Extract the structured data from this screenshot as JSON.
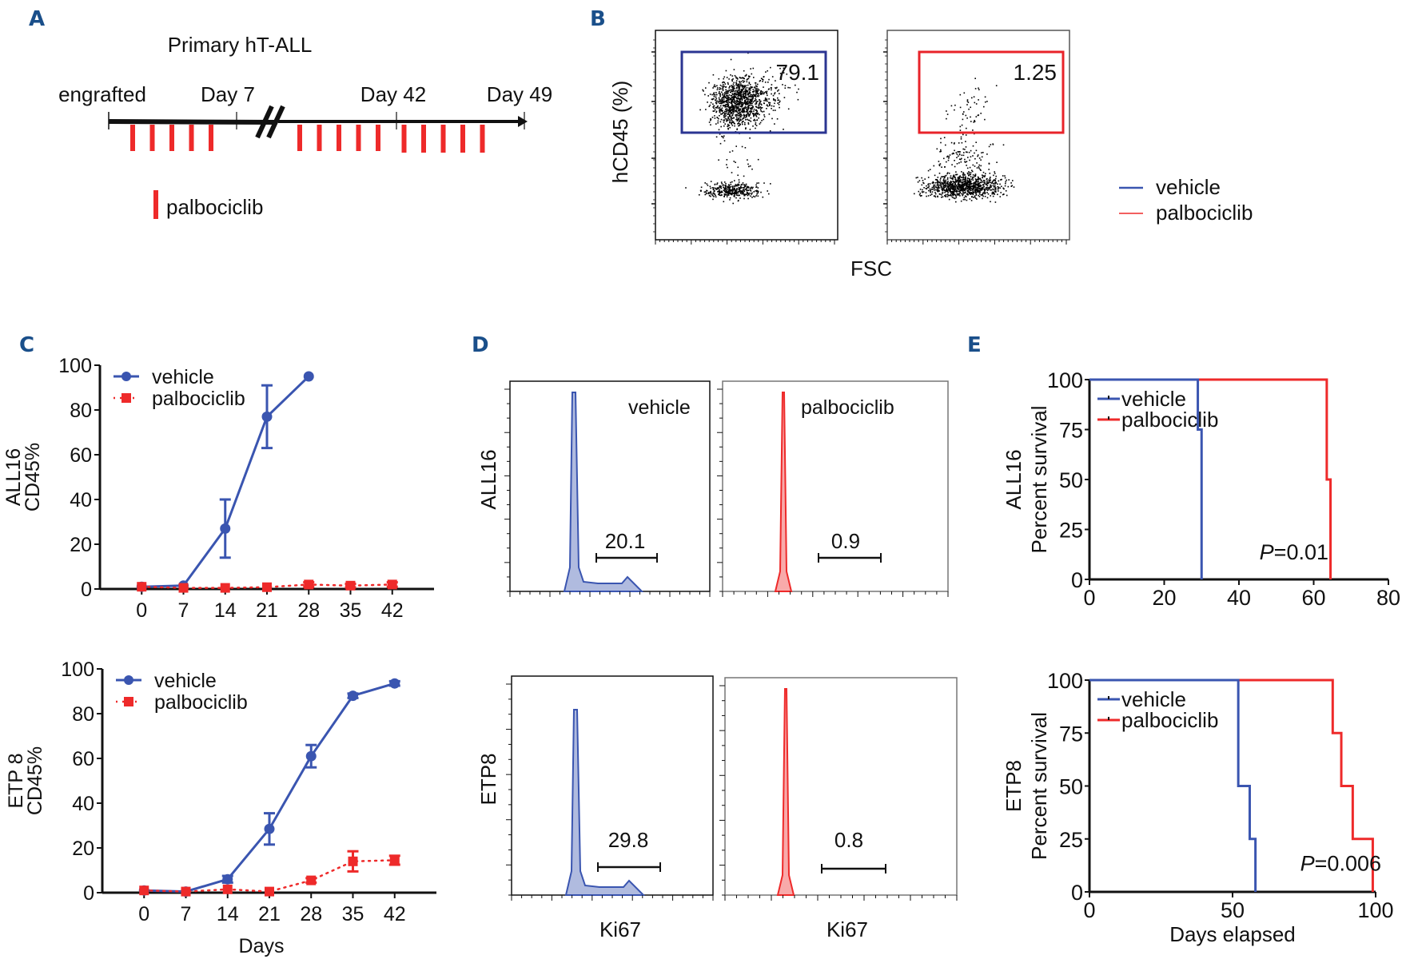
{
  "colors": {
    "vehicle": "#3a55b0",
    "palbociclib": "#ee2a2a",
    "panel_letter": "#1a4f8a",
    "gate_vehicle": "#2b3592",
    "gate_palbo": "#e8232a"
  },
  "panels": {
    "A": {
      "letter": "A",
      "title": "Primary hT-ALL",
      "timeline_labels": [
        "engrafted",
        "Day 7",
        "Day 42",
        "Day 49"
      ],
      "doses_before_break": 5,
      "doses_after_break": 10,
      "legend_label": "palbociclib"
    },
    "B": {
      "letter": "B",
      "ylabel": "hCD45 (%)",
      "xlabel": "FSC",
      "gate_values": [
        "79.1",
        "1.25"
      ],
      "legend": [
        "vehicle",
        "palbociclib"
      ]
    },
    "C": {
      "letter": "C"
    },
    "D": {
      "letter": "D",
      "row_labels": [
        "ALL16",
        "ETP8"
      ],
      "xlabel": "Ki67",
      "condition_labels": [
        "vehicle",
        "palbociclib"
      ],
      "gate_values": [
        [
          "20.1",
          "0.9"
        ],
        [
          "29.8",
          "0.8"
        ]
      ]
    },
    "E": {
      "letter": "E"
    }
  },
  "chart_data": [
    {
      "id": "C-top",
      "type": "line",
      "title": "",
      "xlabel": "",
      "ylabel": [
        "ALL16",
        "CD45%"
      ],
      "x": [
        0,
        7,
        14,
        21,
        28,
        35,
        42
      ],
      "xticks": [
        "0",
        "7",
        "14",
        "21",
        "28",
        "35",
        "42"
      ],
      "yticks": [
        "0",
        "20",
        "40",
        "60",
        "80",
        "100"
      ],
      "ylim": [
        0,
        100
      ],
      "legend": "top-left",
      "series": [
        {
          "name": "vehicle",
          "x": [
            0,
            7,
            14,
            21,
            28
          ],
          "values": [
            1,
            1.5,
            27,
            77,
            95
          ],
          "err": [
            0.5,
            0.5,
            13,
            14,
            0
          ]
        },
        {
          "name": "palbociclib",
          "x": [
            0,
            7,
            14,
            21,
            28,
            35,
            42
          ],
          "values": [
            1,
            0.5,
            0.5,
            0.8,
            2,
            1.5,
            2
          ],
          "err": [
            0.5,
            0.3,
            0.3,
            0.5,
            1,
            0.8,
            1
          ]
        }
      ]
    },
    {
      "id": "C-bottom",
      "type": "line",
      "title": "",
      "xlabel": "Days",
      "ylabel": [
        "ETP 8",
        "CD45%"
      ],
      "x": [
        0,
        7,
        14,
        21,
        28,
        35,
        42
      ],
      "xticks": [
        "0",
        "7",
        "14",
        "21",
        "28",
        "35",
        "42"
      ],
      "yticks": [
        "0",
        "20",
        "40",
        "60",
        "80",
        "100"
      ],
      "ylim": [
        0,
        100
      ],
      "legend": "top-left",
      "series": [
        {
          "name": "vehicle",
          "x": [
            0,
            7,
            14,
            21,
            28,
            35,
            42
          ],
          "values": [
            1,
            0.5,
            6,
            28.5,
            61,
            88,
            93.5
          ],
          "err": [
            0.5,
            0.3,
            1.5,
            7,
            5,
            1,
            1
          ]
        },
        {
          "name": "palbociclib",
          "x": [
            0,
            7,
            14,
            21,
            28,
            35,
            42
          ],
          "values": [
            1,
            0.5,
            1.5,
            0.5,
            5.5,
            14,
            14.5
          ],
          "err": [
            0.5,
            0.3,
            0.5,
            0.3,
            1,
            4.5,
            2
          ]
        }
      ]
    },
    {
      "id": "E-top",
      "type": "line",
      "subtype": "kaplan-meier",
      "xlabel": "",
      "ylabel": [
        "ALL16",
        "Percent survival"
      ],
      "xticks": [
        "0",
        "20",
        "40",
        "60",
        "80"
      ],
      "yticks": [
        "0",
        "25",
        "50",
        "75",
        "100"
      ],
      "xlim": [
        0,
        80
      ],
      "ylim": [
        0,
        100
      ],
      "legend": "top-left",
      "annotation": {
        "italic": "P",
        "text": "=0.01"
      },
      "series": [
        {
          "name": "vehicle",
          "steps": [
            [
              0,
              100
            ],
            [
              29,
              100
            ],
            [
              29,
              75
            ],
            [
              30,
              75
            ],
            [
              30,
              0
            ]
          ]
        },
        {
          "name": "palbociclib",
          "steps": [
            [
              0,
              100
            ],
            [
              63.5,
              100
            ],
            [
              63.5,
              50
            ],
            [
              64.5,
              50
            ],
            [
              64.5,
              0
            ]
          ]
        }
      ]
    },
    {
      "id": "E-bottom",
      "type": "line",
      "subtype": "kaplan-meier",
      "xlabel": "Days elapsed",
      "ylabel": [
        "ETP8",
        "Percent survival"
      ],
      "xticks": [
        "0",
        "50",
        "100"
      ],
      "yticks": [
        "0",
        "25",
        "50",
        "75",
        "100"
      ],
      "xlim": [
        0,
        100
      ],
      "ylim": [
        0,
        100
      ],
      "legend": "top-left",
      "annotation": {
        "italic": "P",
        "text": "=0.006"
      },
      "series": [
        {
          "name": "vehicle",
          "steps": [
            [
              0,
              100
            ],
            [
              52,
              100
            ],
            [
              52,
              50
            ],
            [
              56,
              50
            ],
            [
              56,
              25
            ],
            [
              58,
              25
            ],
            [
              58,
              0
            ]
          ]
        },
        {
          "name": "palbociclib",
          "steps": [
            [
              0,
              100
            ],
            [
              85,
              100
            ],
            [
              85,
              75
            ],
            [
              88,
              75
            ],
            [
              88,
              50
            ],
            [
              92,
              50
            ],
            [
              92,
              25
            ],
            [
              99,
              25
            ],
            [
              99,
              0
            ]
          ]
        }
      ]
    }
  ]
}
